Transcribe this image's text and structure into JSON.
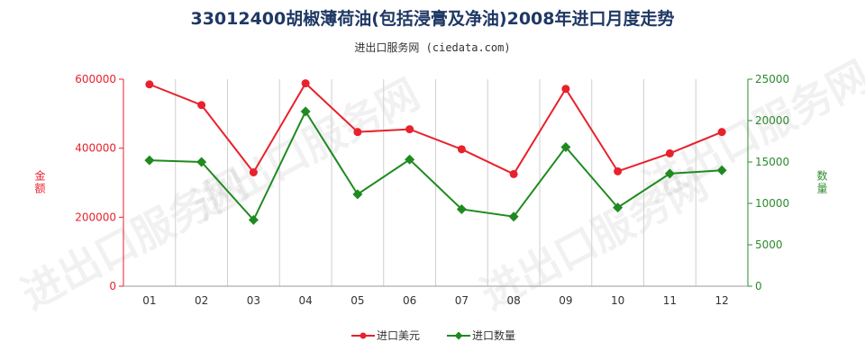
{
  "chart_data": {
    "type": "line",
    "title": "33012400胡椒薄荷油(包括浸膏及净油)2008年进口月度走势",
    "subtitle": "进出口服务网 (ciedata.com)",
    "categories": [
      "01",
      "02",
      "03",
      "04",
      "05",
      "06",
      "07",
      "08",
      "09",
      "10",
      "11",
      "12"
    ],
    "y_left": {
      "label": "金额",
      "min": 0,
      "max": 600000,
      "ticks": [
        "0",
        "200000",
        "400000",
        "600000"
      ],
      "tick_values": [
        0,
        200000,
        400000,
        600000
      ],
      "color": "#e8212c"
    },
    "y_right": {
      "label": "数量",
      "min": 0,
      "max": 25000,
      "ticks": [
        "0",
        "5000",
        "10000",
        "15000",
        "20000",
        "25000"
      ],
      "tick_values": [
        0,
        5000,
        10000,
        15000,
        20000,
        25000
      ],
      "color": "#2d8a2d"
    },
    "series": [
      {
        "name": "进口美元",
        "axis": "left",
        "color": "#e8212c",
        "values": [
          585000,
          525000,
          330000,
          588000,
          447000,
          455000,
          397000,
          325000,
          572000,
          333000,
          385000,
          447000
        ]
      },
      {
        "name": "进口数量",
        "axis": "right",
        "color": "#1f8a1f",
        "values": [
          15200,
          15000,
          8000,
          21100,
          11100,
          15300,
          9300,
          8400,
          16800,
          9500,
          13600,
          14000
        ]
      }
    ],
    "grid": "vertical",
    "legend_position": "bottom-center"
  },
  "watermark_text": "进出口服务网"
}
